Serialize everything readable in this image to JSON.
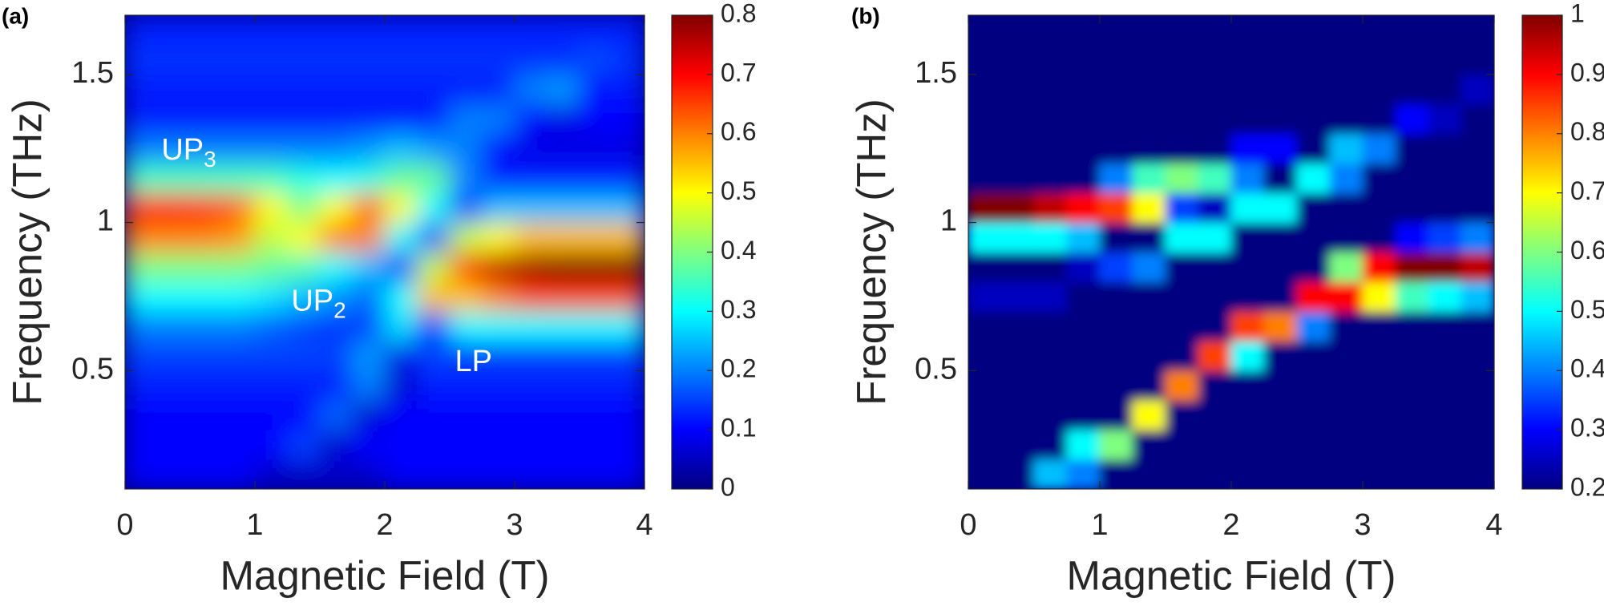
{
  "chart_data": [
    {
      "type": "heatmap",
      "title": "(a)",
      "xlabel": "Magnetic Field (T)",
      "ylabel": "Frequency (THz)",
      "colormap": "jet",
      "x": [
        0.125,
        0.375,
        0.625,
        0.875,
        1.125,
        1.375,
        1.625,
        1.875,
        2.125,
        2.375,
        2.625,
        2.875,
        3.125,
        3.375,
        3.625,
        3.875
      ],
      "y": [
        0.15,
        0.25,
        0.35,
        0.45,
        0.55,
        0.65,
        0.75,
        0.85,
        0.95,
        1.05,
        1.15,
        1.25,
        1.35,
        1.45,
        1.55,
        1.65
      ],
      "z": [
        [
          0.1,
          0.1,
          0.1,
          0.1,
          0.06,
          0.06,
          0.06,
          0.06,
          0.1,
          0.1,
          0.1,
          0.1,
          0.1,
          0.1,
          0.1,
          0.1
        ],
        [
          0.1,
          0.1,
          0.1,
          0.1,
          0.1,
          0.15,
          0.06,
          0.1,
          0.1,
          0.1,
          0.1,
          0.1,
          0.1,
          0.1,
          0.1,
          0.1
        ],
        [
          0.1,
          0.1,
          0.1,
          0.1,
          0.1,
          0.1,
          0.18,
          0.06,
          0.1,
          0.1,
          0.1,
          0.1,
          0.1,
          0.1,
          0.1,
          0.1
        ],
        [
          0.12,
          0.12,
          0.12,
          0.12,
          0.12,
          0.12,
          0.12,
          0.2,
          0.06,
          0.12,
          0.12,
          0.12,
          0.12,
          0.12,
          0.12,
          0.12
        ],
        [
          0.15,
          0.15,
          0.15,
          0.15,
          0.15,
          0.15,
          0.15,
          0.22,
          0.08,
          0.15,
          0.15,
          0.15,
          0.15,
          0.15,
          0.15,
          0.15
        ],
        [
          0.2,
          0.2,
          0.2,
          0.2,
          0.18,
          0.16,
          0.14,
          0.15,
          0.28,
          0.12,
          0.3,
          0.3,
          0.3,
          0.3,
          0.3,
          0.3
        ],
        [
          0.3,
          0.3,
          0.3,
          0.3,
          0.28,
          0.25,
          0.22,
          0.18,
          0.3,
          0.55,
          0.55,
          0.6,
          0.65,
          0.65,
          0.65,
          0.65
        ],
        [
          0.4,
          0.4,
          0.4,
          0.4,
          0.38,
          0.36,
          0.3,
          0.25,
          0.12,
          0.45,
          0.65,
          0.75,
          0.78,
          0.8,
          0.8,
          0.8
        ],
        [
          0.6,
          0.6,
          0.6,
          0.58,
          0.45,
          0.5,
          0.6,
          0.6,
          0.3,
          0.15,
          0.45,
          0.5,
          0.55,
          0.55,
          0.55,
          0.55
        ],
        [
          0.68,
          0.68,
          0.66,
          0.62,
          0.5,
          0.4,
          0.5,
          0.62,
          0.5,
          0.3,
          0.15,
          0.25,
          0.25,
          0.25,
          0.25,
          0.25
        ],
        [
          0.35,
          0.35,
          0.35,
          0.35,
          0.35,
          0.32,
          0.3,
          0.32,
          0.38,
          0.38,
          0.2,
          0.12,
          0.12,
          0.12,
          0.12,
          0.12
        ],
        [
          0.2,
          0.2,
          0.2,
          0.2,
          0.2,
          0.2,
          0.2,
          0.22,
          0.25,
          0.22,
          0.2,
          0.1,
          0.08,
          0.08,
          0.08,
          0.08
        ],
        [
          0.12,
          0.12,
          0.12,
          0.12,
          0.12,
          0.12,
          0.12,
          0.12,
          0.12,
          0.12,
          0.2,
          0.2,
          0.1,
          0.08,
          0.1,
          0.1
        ],
        [
          0.12,
          0.12,
          0.12,
          0.12,
          0.12,
          0.12,
          0.12,
          0.12,
          0.12,
          0.12,
          0.12,
          0.12,
          0.2,
          0.22,
          0.1,
          0.12
        ],
        [
          0.14,
          0.14,
          0.14,
          0.14,
          0.14,
          0.14,
          0.14,
          0.14,
          0.14,
          0.14,
          0.14,
          0.14,
          0.14,
          0.14,
          0.16,
          0.14
        ],
        [
          0.12,
          0.12,
          0.12,
          0.12,
          0.12,
          0.12,
          0.12,
          0.12,
          0.12,
          0.12,
          0.12,
          0.12,
          0.12,
          0.12,
          0.12,
          0.12
        ]
      ],
      "xlim": [
        0,
        4
      ],
      "ylim": [
        0.1,
        1.7
      ],
      "xticks": [
        0,
        1,
        2,
        3,
        4
      ],
      "yticks": [
        0.5,
        1,
        1.5
      ],
      "clim": [
        0,
        0.8
      ],
      "cticks": [
        0,
        0.1,
        0.2,
        0.3,
        0.4,
        0.5,
        0.6,
        0.7,
        0.8
      ],
      "annotations": [
        {
          "text": "UP",
          "subscript": "3"
        },
        {
          "text": "UP",
          "subscript": "2"
        },
        {
          "text": "LP"
        }
      ]
    },
    {
      "type": "heatmap",
      "title": "(b)",
      "xlabel": "Magnetic Field (T)",
      "ylabel": "Frequency (THz)",
      "colormap": "jet",
      "x": [
        0.125,
        0.375,
        0.625,
        0.875,
        1.125,
        1.375,
        1.625,
        1.875,
        2.125,
        2.375,
        2.625,
        2.875,
        3.125,
        3.375,
        3.625,
        3.875
      ],
      "y": [
        0.15,
        0.25,
        0.35,
        0.45,
        0.55,
        0.65,
        0.75,
        0.85,
        0.95,
        1.05,
        1.15,
        1.25,
        1.35,
        1.45,
        1.55,
        1.65
      ],
      "z": [
        [
          0.2,
          0.2,
          0.45,
          0.4,
          0.2,
          0.2,
          0.2,
          0.2,
          0.2,
          0.2,
          0.2,
          0.2,
          0.2,
          0.2,
          0.2,
          0.2
        ],
        [
          0.2,
          0.2,
          0.2,
          0.5,
          0.6,
          0.2,
          0.2,
          0.2,
          0.2,
          0.2,
          0.2,
          0.2,
          0.2,
          0.2,
          0.2,
          0.2
        ],
        [
          0.2,
          0.2,
          0.2,
          0.2,
          0.2,
          0.7,
          0.2,
          0.2,
          0.2,
          0.2,
          0.2,
          0.2,
          0.2,
          0.2,
          0.2,
          0.2
        ],
        [
          0.2,
          0.2,
          0.2,
          0.2,
          0.2,
          0.2,
          0.8,
          0.2,
          0.2,
          0.2,
          0.2,
          0.2,
          0.2,
          0.2,
          0.2,
          0.2
        ],
        [
          0.2,
          0.2,
          0.2,
          0.2,
          0.2,
          0.2,
          0.2,
          0.85,
          0.5,
          0.2,
          0.2,
          0.2,
          0.2,
          0.2,
          0.2,
          0.2
        ],
        [
          0.2,
          0.2,
          0.2,
          0.2,
          0.2,
          0.2,
          0.2,
          0.2,
          0.85,
          0.8,
          0.4,
          0.2,
          0.2,
          0.2,
          0.2,
          0.2
        ],
        [
          0.25,
          0.25,
          0.25,
          0.2,
          0.2,
          0.2,
          0.2,
          0.2,
          0.2,
          0.2,
          0.9,
          0.9,
          0.7,
          0.55,
          0.5,
          0.45
        ],
        [
          0.2,
          0.2,
          0.2,
          0.25,
          0.35,
          0.4,
          0.2,
          0.2,
          0.2,
          0.2,
          0.2,
          0.6,
          0.9,
          1,
          1,
          0.95
        ],
        [
          0.5,
          0.5,
          0.5,
          0.45,
          0.2,
          0.2,
          0.5,
          0.5,
          0.2,
          0.2,
          0.2,
          0.2,
          0.2,
          0.3,
          0.35,
          0.4
        ],
        [
          1,
          1,
          0.95,
          0.9,
          0.85,
          0.7,
          0.35,
          0.25,
          0.5,
          0.5,
          0.2,
          0.2,
          0.2,
          0.2,
          0.2,
          0.2
        ],
        [
          0.2,
          0.2,
          0.2,
          0.2,
          0.4,
          0.55,
          0.6,
          0.55,
          0.4,
          0.2,
          0.5,
          0.4,
          0.2,
          0.2,
          0.2,
          0.2
        ],
        [
          0.2,
          0.2,
          0.2,
          0.2,
          0.2,
          0.2,
          0.2,
          0.2,
          0.3,
          0.3,
          0.2,
          0.45,
          0.4,
          0.2,
          0.2,
          0.2
        ],
        [
          0.2,
          0.2,
          0.2,
          0.2,
          0.2,
          0.2,
          0.2,
          0.2,
          0.2,
          0.2,
          0.2,
          0.2,
          0.2,
          0.3,
          0.25,
          0.2
        ],
        [
          0.2,
          0.2,
          0.2,
          0.2,
          0.2,
          0.2,
          0.2,
          0.2,
          0.2,
          0.2,
          0.2,
          0.2,
          0.2,
          0.2,
          0.2,
          0.25
        ],
        [
          0.2,
          0.2,
          0.2,
          0.2,
          0.2,
          0.2,
          0.2,
          0.2,
          0.2,
          0.2,
          0.2,
          0.2,
          0.2,
          0.2,
          0.2,
          0.2
        ],
        [
          0.2,
          0.2,
          0.2,
          0.2,
          0.2,
          0.2,
          0.2,
          0.2,
          0.2,
          0.2,
          0.2,
          0.2,
          0.2,
          0.2,
          0.2,
          0.2
        ]
      ],
      "xlim": [
        0,
        4
      ],
      "ylim": [
        0.1,
        1.7
      ],
      "xticks": [
        0,
        1,
        2,
        3,
        4
      ],
      "yticks": [
        0.5,
        1,
        1.5
      ],
      "clim": [
        0.2,
        1
      ],
      "cticks": [
        0.2,
        0.3,
        0.4,
        0.5,
        0.6,
        0.7,
        0.8,
        0.9,
        1
      ]
    }
  ]
}
